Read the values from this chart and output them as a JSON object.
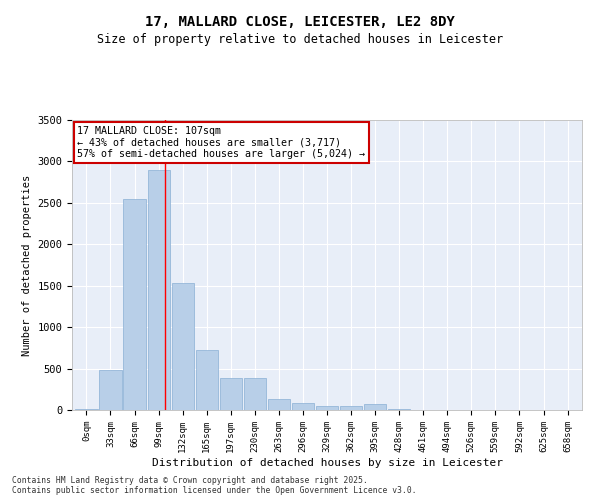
{
  "title_line1": "17, MALLARD CLOSE, LEICESTER, LE2 8DY",
  "title_line2": "Size of property relative to detached houses in Leicester",
  "xlabel": "Distribution of detached houses by size in Leicester",
  "ylabel": "Number of detached properties",
  "categories": [
    "0sqm",
    "33sqm",
    "66sqm",
    "99sqm",
    "132sqm",
    "165sqm",
    "197sqm",
    "230sqm",
    "263sqm",
    "296sqm",
    "329sqm",
    "362sqm",
    "395sqm",
    "428sqm",
    "461sqm",
    "494sqm",
    "526sqm",
    "559sqm",
    "592sqm",
    "625sqm",
    "658sqm"
  ],
  "values": [
    10,
    480,
    2550,
    2900,
    1530,
    730,
    390,
    390,
    130,
    80,
    50,
    50,
    70,
    10,
    5,
    5,
    5,
    5,
    5,
    5,
    5
  ],
  "bar_color": "#b8cfe8",
  "bar_edge_color": "#8aafd4",
  "bg_color": "#e8eef8",
  "grid_color": "#ffffff",
  "fig_bg_color": "#ffffff",
  "ylim": [
    0,
    3500
  ],
  "yticks": [
    0,
    500,
    1000,
    1500,
    2000,
    2500,
    3000,
    3500
  ],
  "property_line_x": 3.25,
  "annotation_text": "17 MALLARD CLOSE: 107sqm\n← 43% of detached houses are smaller (3,717)\n57% of semi-detached houses are larger (5,024) →",
  "annotation_box_color": "#ffffff",
  "annotation_border_color": "#cc0000",
  "footer_line1": "Contains HM Land Registry data © Crown copyright and database right 2025.",
  "footer_line2": "Contains public sector information licensed under the Open Government Licence v3.0."
}
